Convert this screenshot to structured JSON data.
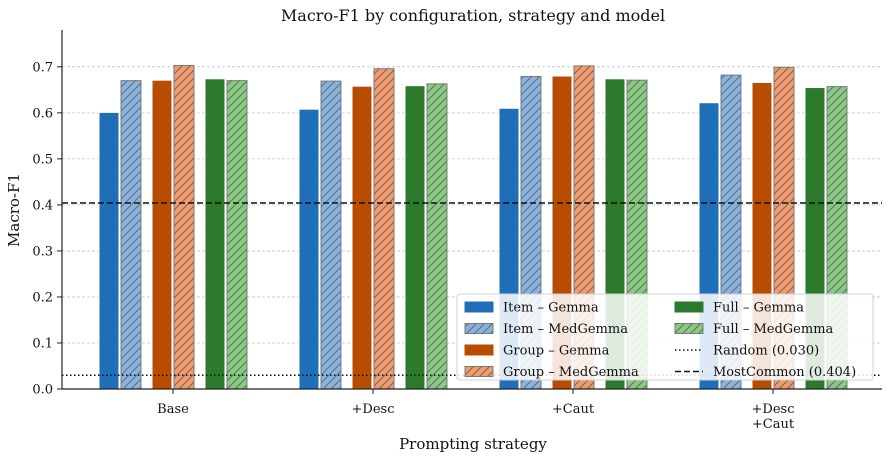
{
  "chart_data": {
    "type": "bar",
    "title": "Macro-F1 by configuration, strategy and model",
    "xlabel": "Prompting strategy",
    "ylabel": "Macro-F1",
    "ylim": [
      0,
      0.78
    ],
    "yticks": [
      "0.0",
      "0.1",
      "0.2",
      "0.3",
      "0.4",
      "0.5",
      "0.6",
      "0.7"
    ],
    "categories": [
      [
        "Base"
      ],
      [
        "+Desc"
      ],
      [
        "+Caut"
      ],
      [
        "+Desc",
        "+Caut"
      ]
    ],
    "grid": "horizontal, dashed",
    "legend_position": "lower-right",
    "series": [
      {
        "name": "Item – Gemma",
        "color": "#1f6fb8",
        "hatch": false,
        "values": [
          0.601,
          0.608,
          0.61,
          0.622
        ]
      },
      {
        "name": "Item – MedGemma",
        "color": "#85b4e3",
        "hatch": true,
        "values": [
          0.67,
          0.669,
          0.679,
          0.682
        ]
      },
      {
        "name": "Group – Gemma",
        "color": "#b84c00",
        "hatch": false,
        "values": [
          0.671,
          0.658,
          0.68,
          0.666
        ]
      },
      {
        "name": "Group – MedGemma",
        "color": "#f5996a",
        "hatch": true,
        "values": [
          0.703,
          0.696,
          0.702,
          0.699
        ]
      },
      {
        "name": "Full – Gemma",
        "color": "#2b7a2b",
        "hatch": false,
        "values": [
          0.674,
          0.659,
          0.674,
          0.655
        ]
      },
      {
        "name": "Full – MedGemma",
        "color": "#85cc7f",
        "hatch": true,
        "values": [
          0.67,
          0.663,
          0.671,
          0.657
        ]
      }
    ],
    "reference_lines": [
      {
        "name": "Random (0.030)",
        "value": 0.03,
        "style": "dotted"
      },
      {
        "name": "MostCommon (0.404)",
        "value": 0.404,
        "style": "dashed"
      }
    ]
  }
}
